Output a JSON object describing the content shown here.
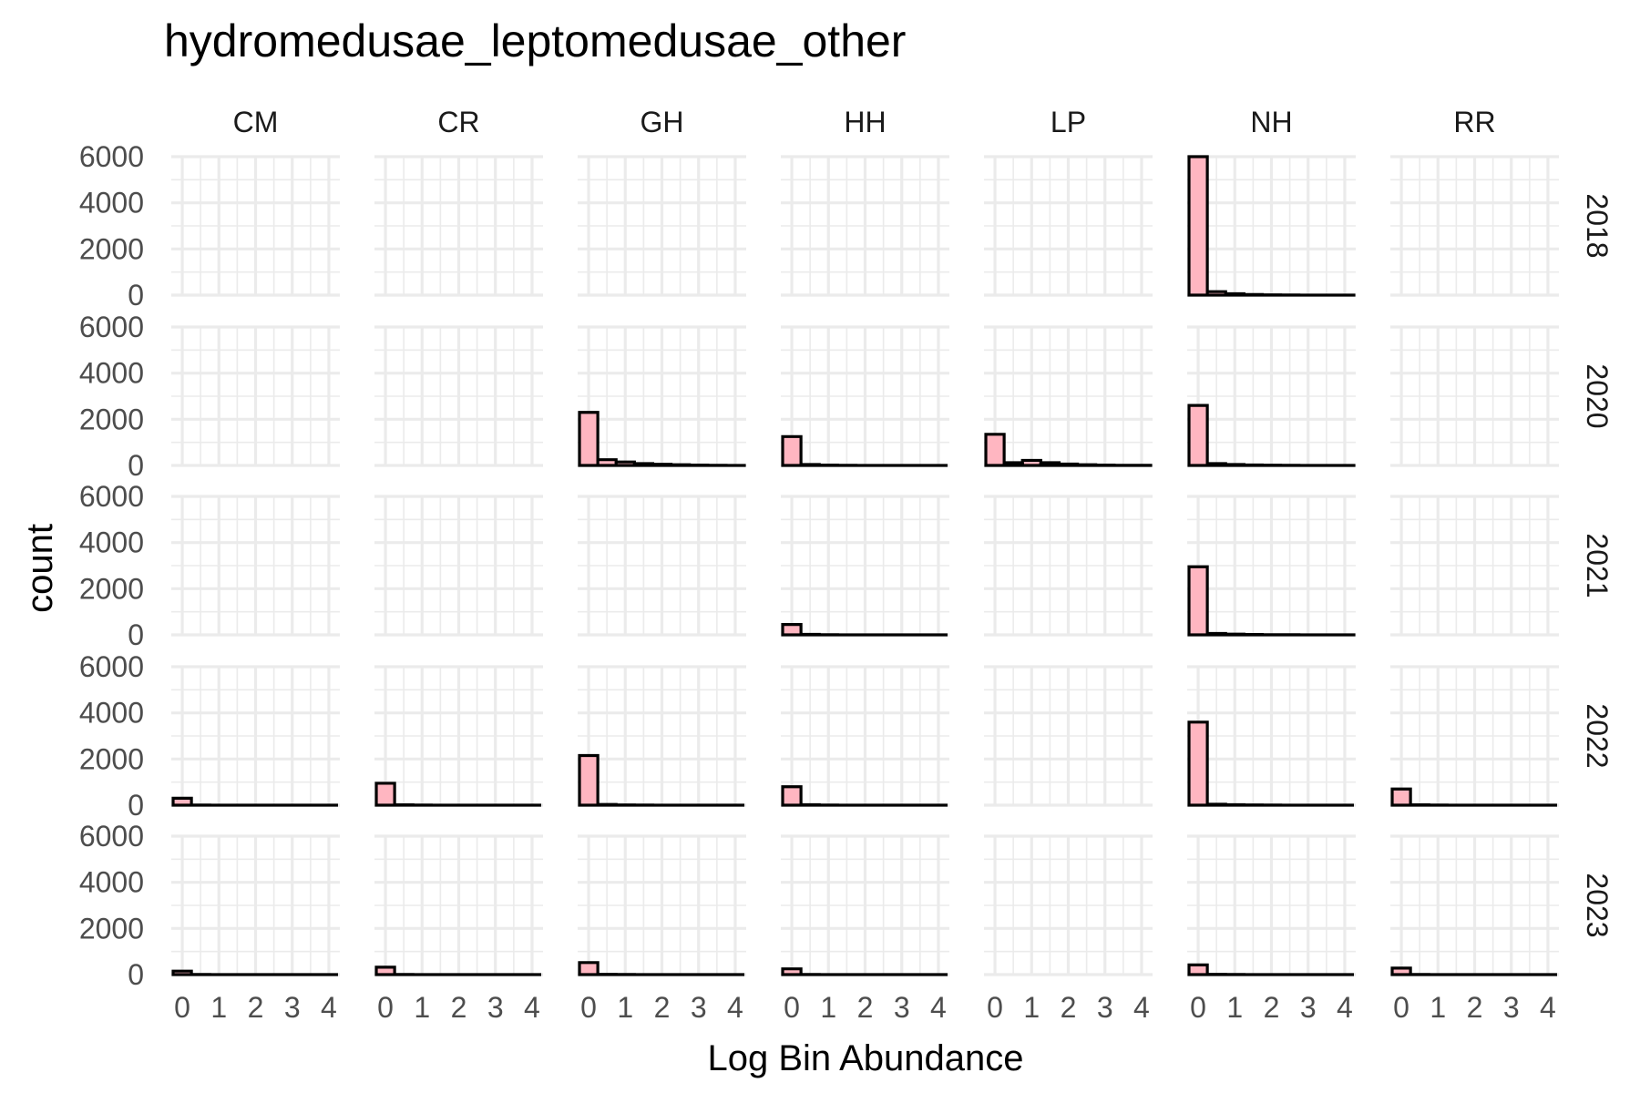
{
  "chart_data": {
    "type": "bar",
    "title": "hydromedusae_leptomedusae_other",
    "xlabel": "Log Bin Abundance",
    "ylabel": "count",
    "xlim": [
      -0.3,
      4.3
    ],
    "ylim": [
      0,
      6000
    ],
    "x_ticks": [
      "0",
      "1",
      "2",
      "3",
      "4"
    ],
    "y_ticks": [
      "0",
      "2000",
      "4000",
      "6000"
    ],
    "grid": true,
    "bin_width": 0.5,
    "bin_starts": [
      -0.25,
      0.25,
      0.75,
      1.25,
      1.75,
      2.25,
      2.75,
      3.25,
      3.75
    ],
    "columns": [
      "CM",
      "CR",
      "GH",
      "HH",
      "LP",
      "NH",
      "RR"
    ],
    "rows": [
      "2018",
      "2020",
      "2021",
      "2022",
      "2023"
    ],
    "colors": {
      "fill": "#ffb6c1",
      "stroke": "#000000",
      "grid": "#ebebeb"
    },
    "panels": {
      "2018": {
        "NH": [
          6000,
          150,
          60,
          25,
          12,
          6,
          3,
          2,
          1
        ]
      },
      "2020": {
        "GH": [
          2300,
          250,
          150,
          80,
          50,
          30,
          15,
          8,
          3
        ],
        "HH": [
          1250,
          40,
          15,
          6,
          3,
          2,
          1,
          1,
          0
        ],
        "LP": [
          1350,
          120,
          220,
          120,
          60,
          30,
          15,
          8,
          4
        ],
        "NH": [
          2600,
          80,
          40,
          20,
          10,
          5,
          3,
          2,
          1
        ]
      },
      "2021": {
        "HH": [
          450,
          20,
          8,
          3,
          2,
          1,
          0,
          0,
          0
        ],
        "NH": [
          2950,
          60,
          30,
          15,
          8,
          4,
          2,
          1,
          1
        ]
      },
      "2022": {
        "CM": [
          300,
          8,
          3,
          1,
          0,
          0,
          0,
          0,
          0
        ],
        "CR": [
          950,
          15,
          5,
          2,
          1,
          0,
          0,
          0,
          0
        ],
        "GH": [
          2150,
          30,
          12,
          6,
          3,
          2,
          1,
          0,
          0
        ],
        "HH": [
          800,
          20,
          8,
          3,
          2,
          1,
          0,
          0,
          0
        ],
        "NH": [
          3600,
          40,
          20,
          10,
          5,
          3,
          2,
          1,
          0
        ],
        "RR": [
          700,
          15,
          6,
          3,
          1,
          0,
          0,
          0,
          0
        ]
      },
      "2023": {
        "CM": [
          150,
          6,
          2,
          1,
          0,
          0,
          0,
          0,
          0
        ],
        "CR": [
          320,
          8,
          3,
          1,
          0,
          0,
          0,
          0,
          0
        ],
        "GH": [
          520,
          12,
          5,
          2,
          1,
          0,
          0,
          0,
          0
        ],
        "HH": [
          250,
          8,
          3,
          1,
          0,
          0,
          0,
          0,
          0
        ],
        "NH": [
          420,
          10,
          4,
          2,
          1,
          0,
          0,
          0,
          0
        ],
        "RR": [
          280,
          8,
          3,
          1,
          0,
          0,
          0,
          0,
          0
        ]
      }
    }
  }
}
